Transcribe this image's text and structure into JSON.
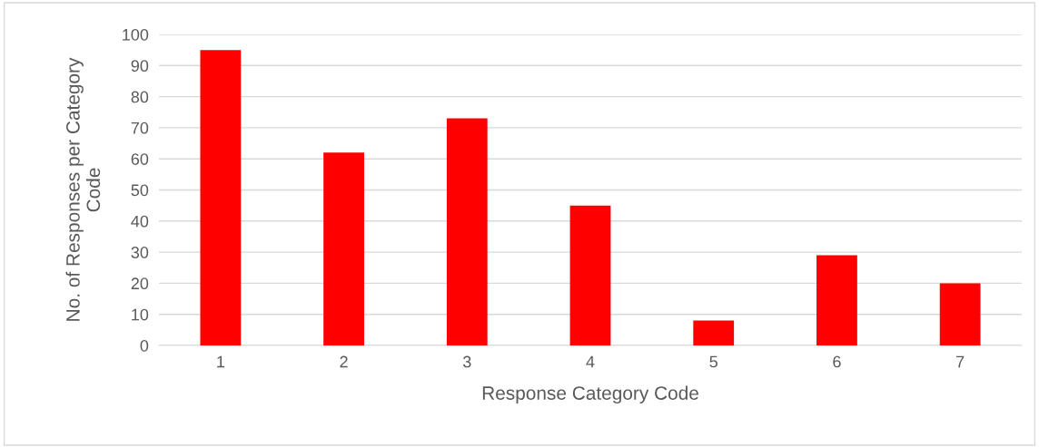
{
  "chart_data": {
    "type": "bar",
    "xlabel": "Response Category Code",
    "ylabel": "No. of Responses per Category\nCode",
    "categories": [
      "1",
      "2",
      "3",
      "4",
      "5",
      "6",
      "7"
    ],
    "values": [
      95,
      62,
      73,
      45,
      8,
      29,
      20
    ],
    "color": "#ff0000",
    "ylim": [
      0,
      100
    ],
    "yticks": [
      0,
      10,
      20,
      30,
      40,
      50,
      60,
      70,
      80,
      90,
      100
    ],
    "grid": "y",
    "legend": false
  }
}
